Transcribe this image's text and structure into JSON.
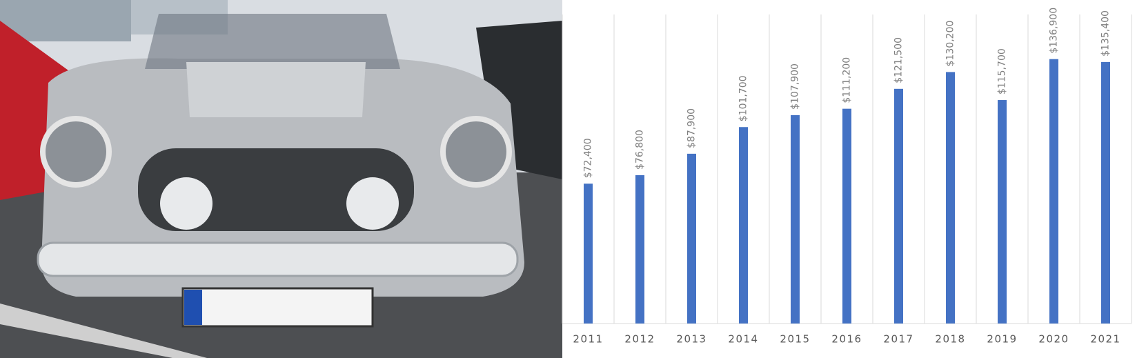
{
  "chart_data": {
    "type": "bar",
    "categories": [
      "2011",
      "2012",
      "2013",
      "2014",
      "2015",
      "2016",
      "2017",
      "2018",
      "2019",
      "2020",
      "2021"
    ],
    "values": [
      72400,
      76800,
      87900,
      101700,
      107900,
      111200,
      121500,
      130200,
      115700,
      136900,
      135400
    ],
    "value_labels": [
      "$72,400",
      "$76,800",
      "$87,900",
      "$101,700",
      "$107,900",
      "$111,200",
      "$121,500",
      "$130,200",
      "$115,700",
      "$136,900",
      "$135,400"
    ],
    "color": "#4472c4",
    "ylim": [
      0,
      160000
    ],
    "grid": true
  }
}
